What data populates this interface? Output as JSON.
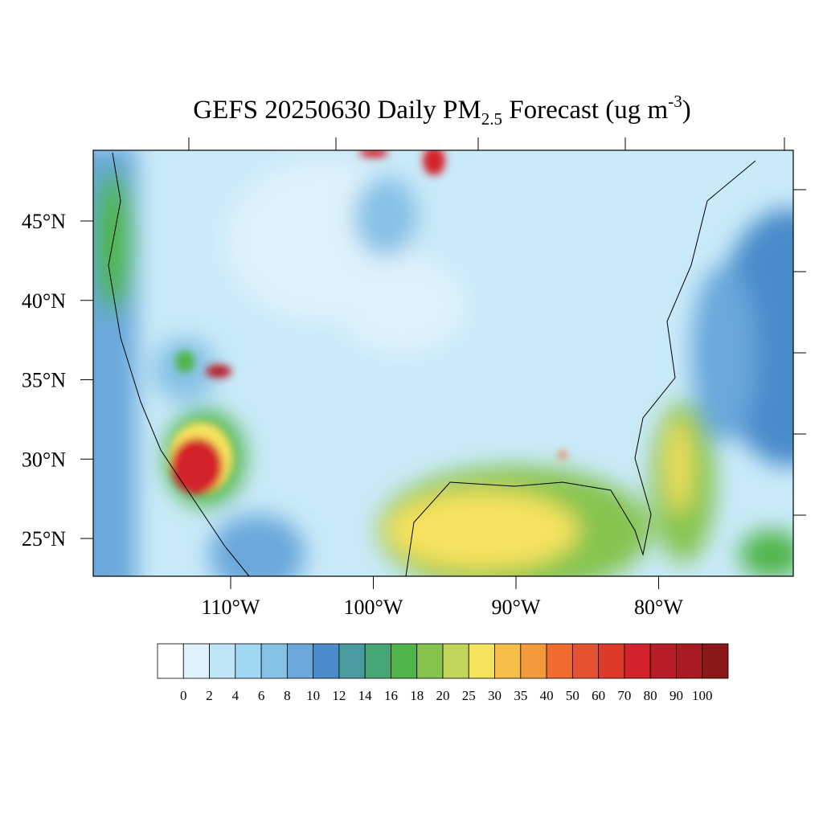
{
  "header": {
    "title_parts": [
      "GEFS 20250630 Daily PM",
      "2.5",
      " Forecast (ug m",
      "-3",
      ")"
    ]
  },
  "map": {
    "lat_ticks": [
      {
        "value": 45,
        "label": "45°N"
      },
      {
        "value": 40,
        "label": "40°N"
      },
      {
        "value": 35,
        "label": "35°N"
      },
      {
        "value": 30,
        "label": "30°N"
      },
      {
        "value": 25,
        "label": "25°N"
      }
    ],
    "lon_ticks": [
      {
        "value": -110,
        "label": "110°W"
      },
      {
        "value": -100,
        "label": "100°W"
      },
      {
        "value": -90,
        "label": "90°W"
      },
      {
        "value": -80,
        "label": "80°W"
      }
    ]
  },
  "colorbar": {
    "levels": [
      0,
      2,
      4,
      6,
      8,
      10,
      12,
      14,
      16,
      18,
      20,
      25,
      30,
      35,
      40,
      50,
      60,
      70,
      80,
      90,
      100
    ],
    "colors": [
      "#ffffff",
      "#dff2fb",
      "#bfe6f7",
      "#a0d8f4",
      "#86c1e6",
      "#6aa8dc",
      "#4a8cca",
      "#4a9aa0",
      "#46a675",
      "#4fb54a",
      "#85c44f",
      "#c2d45a",
      "#f7e25e",
      "#f7bd4a",
      "#f59a3c",
      "#f06c2e",
      "#e55230",
      "#dd3a2a",
      "#d4242b",
      "#b81d27",
      "#a81b22",
      "#8c1719"
    ]
  }
}
